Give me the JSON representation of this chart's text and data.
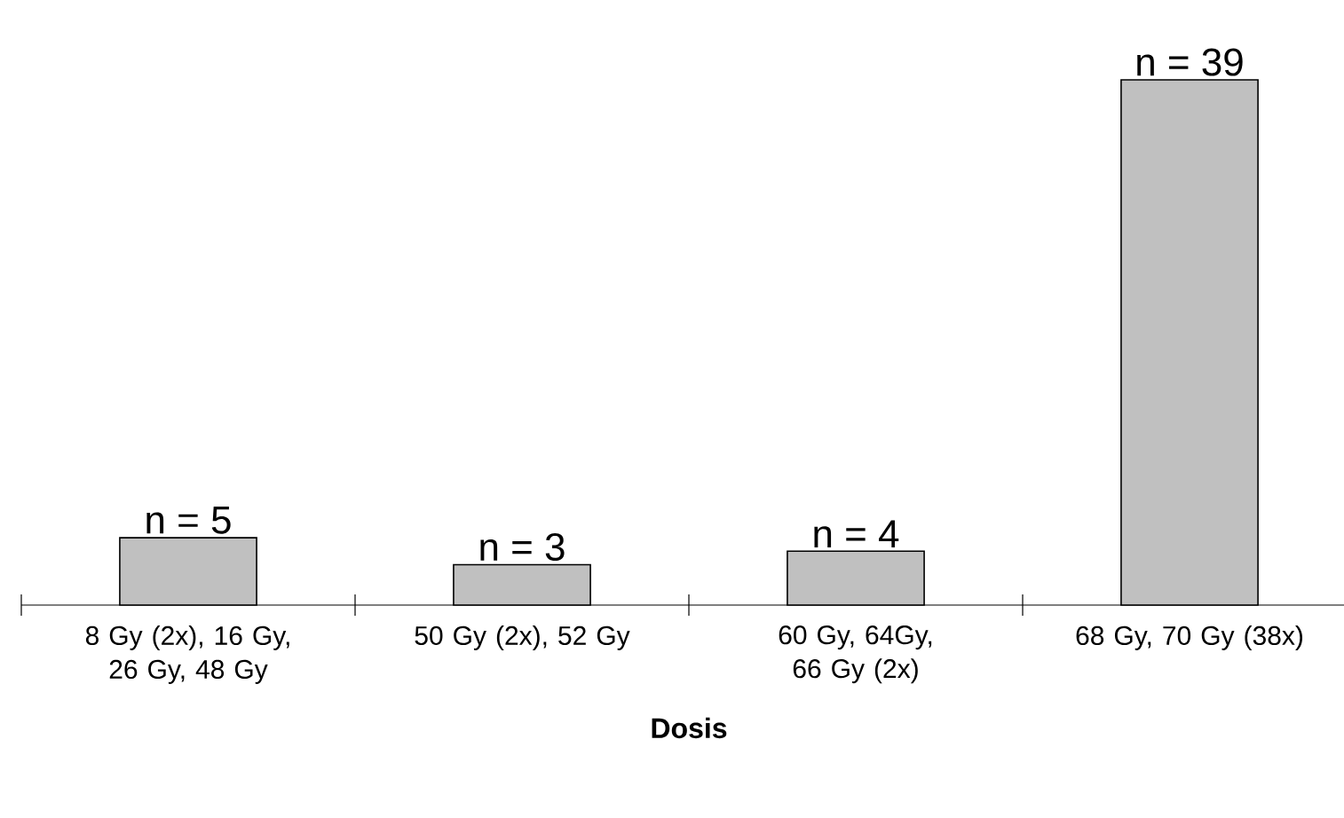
{
  "chart_data": {
    "type": "bar",
    "xlabel": "Dosis",
    "categories": [
      "8 Gy (2x), 16 Gy, 26 Gy, 48 Gy",
      "50 Gy (2x), 52 Gy",
      "60 Gy, 64Gy, 66 Gy (2x)",
      "68 Gy, 70 Gy (38x)"
    ],
    "values": [
      5,
      3,
      4,
      39
    ],
    "value_labels": [
      "n = 5",
      "n = 3",
      "n = 4",
      "n = 39"
    ],
    "color": "#c0c0c0"
  }
}
